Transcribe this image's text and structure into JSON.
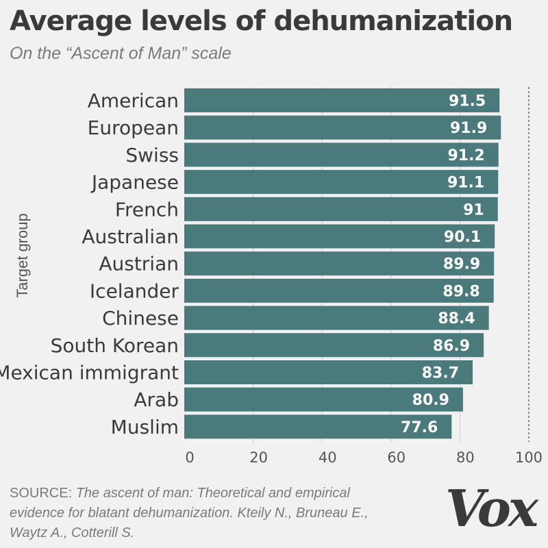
{
  "title": "Average levels of dehumanization",
  "subtitle": "On the “Ascent of Man” scale",
  "chart_data": {
    "type": "bar",
    "orientation": "horizontal",
    "categories": [
      "American",
      "European",
      "Swiss",
      "Japanese",
      "French",
      "Australian",
      "Austrian",
      "Icelander",
      "Chinese",
      "South Korean",
      "Mexican immigrant",
      "Arab",
      "Muslim"
    ],
    "values": [
      91.5,
      91.9,
      91.2,
      91.1,
      91,
      90.1,
      89.9,
      89.8,
      88.4,
      86.9,
      83.7,
      80.9,
      77.6
    ],
    "value_labels": [
      "91.5",
      "91.9",
      "91.2",
      "91.1",
      "91",
      "90.1",
      "89.9",
      "89.8",
      "88.4",
      "86.9",
      "83.7",
      "80.9",
      "77.6"
    ],
    "xlim": [
      0,
      100
    ],
    "xticks": [
      0,
      20,
      40,
      60,
      80,
      100
    ],
    "xtick_labels": [
      "0",
      "20",
      "40",
      "60",
      "80",
      "100"
    ],
    "ylabel": "Target group",
    "xlabel": "",
    "reference_line": 100,
    "bar_color": "#4a7a7c"
  },
  "source": {
    "prefix": "SOURCE:",
    "text": "The ascent of man: Theoretical and empirical evidence for blatant dehumanization. Kteily N., Bruneau E., Waytz A., Cotterill S."
  },
  "logo_text": "Vox",
  "colors": {
    "background": "#f0f1f0",
    "bar": "#4a7a7c",
    "text": "#3a3a3a",
    "muted": "#7a7a7a"
  }
}
